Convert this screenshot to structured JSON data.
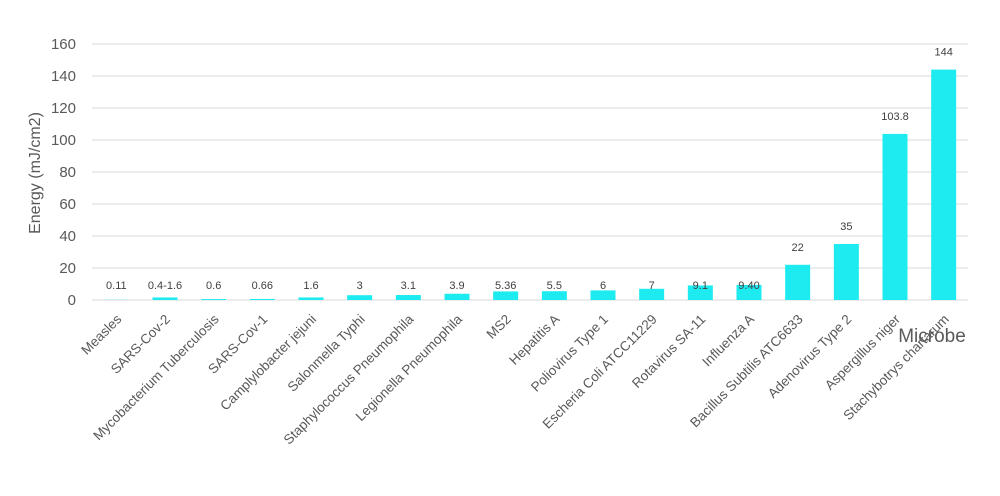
{
  "chart_data": {
    "type": "bar",
    "ylabel": "Energy (mJ/cm2)",
    "xlabel": "Microbe",
    "ylim": [
      0,
      160
    ],
    "yticks": [
      0,
      20,
      40,
      60,
      80,
      100,
      120,
      140,
      160
    ],
    "grid": true,
    "bar_color": "#1EEBF0",
    "categories": [
      "Measles",
      "SARS-Cov-2",
      "Mycobacterium Tuberculosis",
      "SARS-Cov-1",
      "Camplylobacter jejuni",
      "Salonmella Typhi",
      "Staphylococcus Pneumophila",
      "Legionella Pneumophila",
      "MS2",
      "Hepatitis A",
      "Poliovirus Type 1",
      "Escheria Coli ATCC11229",
      "Rotavirus SA-11",
      "Influenza A",
      "Bacillus Subtilis ATC6633",
      "Adenovirus Type 2",
      "Aspergillus niger",
      "Stachybotrys chartarum"
    ],
    "values": [
      0.11,
      1.6,
      0.6,
      0.66,
      1.6,
      3,
      3.1,
      3.9,
      5.36,
      5.5,
      6,
      7,
      9.1,
      9.4,
      22,
      35,
      103.8,
      144
    ],
    "data_labels": [
      "0.11",
      "0.4-1.6",
      "0.6",
      "0.66",
      "1.6",
      "3",
      "3.1",
      "3.9",
      "5.36",
      "5.5",
      "6",
      "7",
      "9.1",
      "9.40",
      "22",
      "35",
      "103.8",
      "144"
    ]
  }
}
